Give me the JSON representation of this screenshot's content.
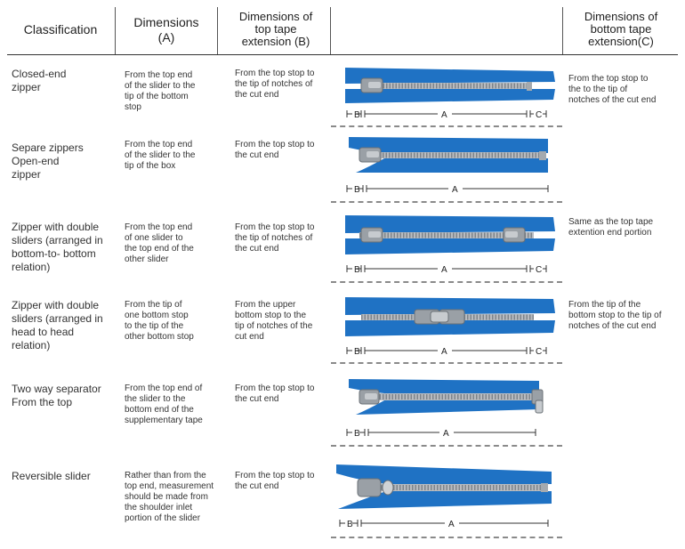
{
  "header": {
    "classification": "Classification",
    "dim_a": "Dimensions",
    "dim_a_sub": "(A)",
    "dim_b_l1": "Dimensions of",
    "dim_b_l2": "top tape",
    "dim_b_l3": "extension (B)",
    "dim_c_l1": "Dimensions of",
    "dim_c_l2": "bottom tape",
    "dim_c_l3": "extension(C)"
  },
  "rows": [
    {
      "classification": [
        "Closed-end",
        "zipper"
      ],
      "dim_a": [
        "From the top end",
        "of the slider to the",
        "tip of the bottom",
        "stop"
      ],
      "dim_b": [
        "From the top stop to",
        "the tip of notches of",
        "the cut end"
      ],
      "dim_c": [
        "From the top stop to",
        "the to the tip of",
        "notches of the cut end"
      ],
      "labels": {
        "b": "B",
        "a": "A",
        "c": "C"
      }
    },
    {
      "classification": [
        "Separe zippers",
        "Open-end",
        "zipper"
      ],
      "dim_a": [
        "From the top end",
        "of the slider to the",
        "tip of the box"
      ],
      "dim_b": [
        "From the top stop to",
        "the cut end"
      ],
      "dim_c": [],
      "labels": {
        "b": "B",
        "a": "A"
      }
    },
    {
      "classification": [
        "Zipper with double",
        "sliders (arranged in",
        "bottom-to- bottom",
        "relation)"
      ],
      "dim_a": [
        "From the top end",
        "of one slider to",
        "the top end of the",
        "other slider"
      ],
      "dim_b": [
        "From the top stop to",
        "the tip of notches of",
        "the cut end"
      ],
      "dim_c": [
        "Same as the top tape",
        "extention end portion"
      ],
      "labels": {
        "b": "B",
        "a": "A",
        "c": "C"
      }
    },
    {
      "classification": [
        "Zipper with double",
        "sliders (arranged in",
        "head to head",
        "relation)"
      ],
      "dim_a": [
        "From the tip of",
        "one bottom stop",
        "to the tip of the",
        "other bottom stop"
      ],
      "dim_b": [
        "From the upper",
        "bottom stop to the",
        "tip of notches of the",
        "cut end"
      ],
      "dim_c": [
        "From the tip of the",
        "bottom stop to the tip of",
        "notches of the cut end"
      ],
      "labels": {
        "b": "B",
        "a": "A",
        "c": "C"
      }
    },
    {
      "classification": [
        "Two way separator",
        "From the top"
      ],
      "dim_a": [
        "From the top end of",
        "the slider to the",
        "bottom end of the",
        "supplementary tape"
      ],
      "dim_b": [
        "From the top stop to",
        "the cut end"
      ],
      "dim_c": [],
      "labels": {
        "b": "B",
        "a": "A"
      }
    },
    {
      "classification": [
        "Reversible slider"
      ],
      "dim_a": [
        "Rather than from the",
        "top end, measurement",
        "should be made from",
        "the shoulder inlet",
        "portion of the slider"
      ],
      "dim_b": [
        "From the top stop to",
        "the cut end"
      ],
      "dim_c": [],
      "labels": {
        "b": "B",
        "a": "A"
      }
    }
  ],
  "colors": {
    "tape": "#1f72c4",
    "tape_dark": "#155a9e",
    "teeth": "#b9bcc0",
    "metal": "#9aa0a6"
  }
}
